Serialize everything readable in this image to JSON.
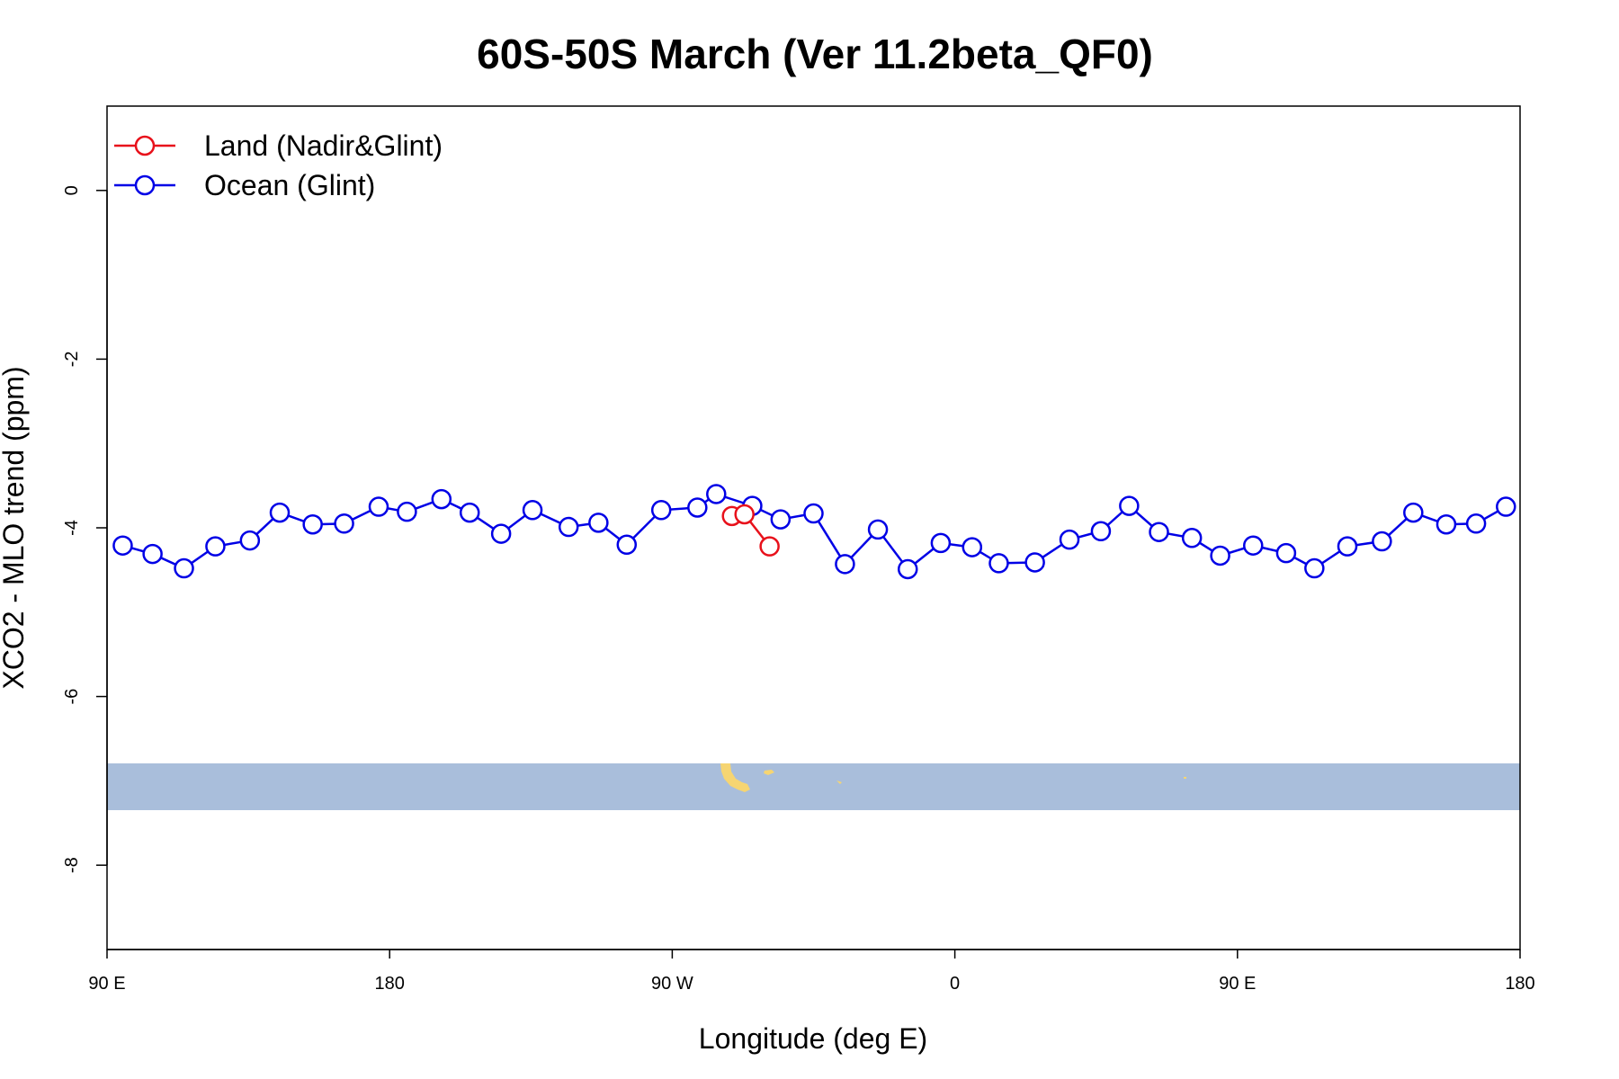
{
  "chart_data": {
    "type": "line",
    "title": "60S-50S March (Ver 11.2beta_QF0)",
    "xlabel": "Longitude (deg E)",
    "ylabel": "XCO2 - MLO trend (ppm)",
    "x_axis_span_deg": [
      0,
      450
    ],
    "xlim": [
      0,
      450
    ],
    "ylim": [
      -9.0,
      1.0
    ],
    "x_ticks": [
      {
        "x": 0,
        "label": "90 E"
      },
      {
        "x": 90,
        "label": "180"
      },
      {
        "x": 180,
        "label": "90 W"
      },
      {
        "x": 270,
        "label": "0"
      },
      {
        "x": 360,
        "label": "90 E"
      },
      {
        "x": 450,
        "label": "180"
      }
    ],
    "y_ticks": [
      {
        "y": 0,
        "label": "0"
      },
      {
        "y": -2,
        "label": "-2"
      },
      {
        "y": -4,
        "label": "-4"
      },
      {
        "y": -6,
        "label": "-6"
      },
      {
        "y": -8,
        "label": "-8"
      }
    ],
    "legend_position": "top-left",
    "grid": false,
    "series": [
      {
        "name": "Land (Nadir&Glint)",
        "color": "#e8111b",
        "x": [
          199.0,
          203.0,
          211.0
        ],
        "y": [
          -3.86,
          -3.84,
          -4.22
        ]
      },
      {
        "name": "Ocean (Glint)",
        "color": "#0000e6",
        "x": [
          5.0,
          14.5,
          24.5,
          34.5,
          45.5,
          55.0,
          65.5,
          75.5,
          86.5,
          95.5,
          106.5,
          115.5,
          125.5,
          135.5,
          147.0,
          156.5,
          165.5,
          176.5,
          188.0,
          194.0,
          205.5,
          214.5,
          225.0,
          235.0,
          245.5,
          255.0,
          265.5,
          275.5,
          284.0,
          295.5,
          306.5,
          316.5,
          325.5,
          335.0,
          345.5,
          354.5,
          365.0,
          375.5,
          384.5,
          395.0,
          406.0,
          416.0,
          426.5,
          436.0,
          445.5
        ],
        "y": [
          -4.21,
          -4.31,
          -4.48,
          -4.22,
          -4.15,
          -3.82,
          -3.96,
          -3.95,
          -3.75,
          -3.81,
          -3.66,
          -3.82,
          -4.07,
          -3.79,
          -3.99,
          -3.94,
          -4.2,
          -3.79,
          -3.76,
          -3.6,
          -3.74,
          -3.9,
          -3.83,
          -4.43,
          -4.02,
          -4.49,
          -4.18,
          -4.23,
          -4.42,
          -4.41,
          -4.14,
          -4.04,
          -3.74,
          -4.05,
          -4.12,
          -4.33,
          -4.21,
          -4.3,
          -4.48,
          -4.22,
          -4.16,
          -3.82,
          -3.96,
          -3.95,
          -3.75
        ]
      }
    ]
  }
}
